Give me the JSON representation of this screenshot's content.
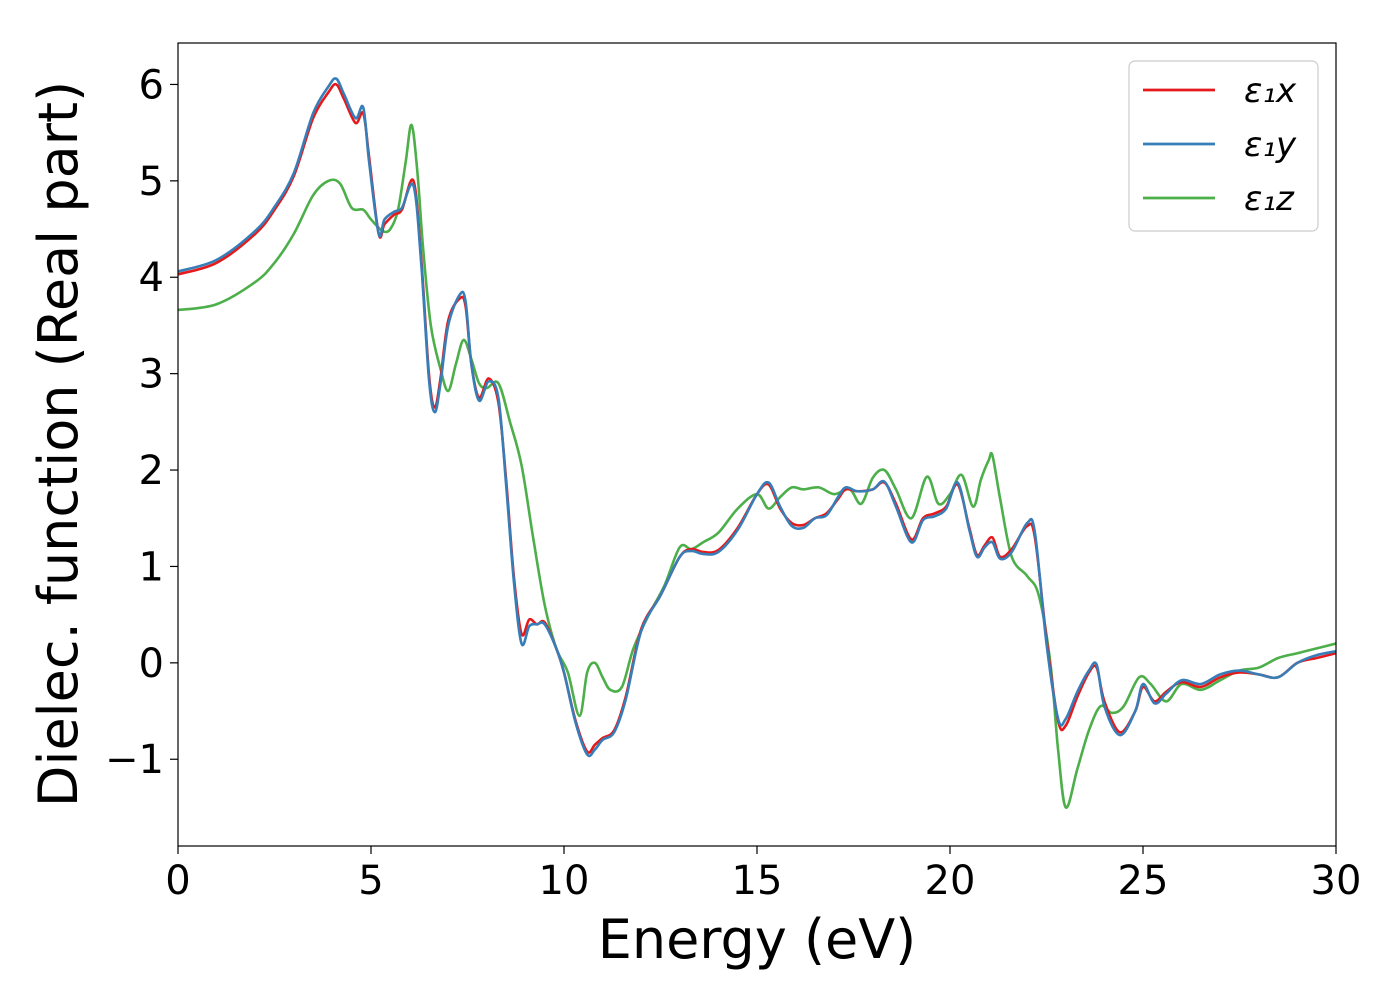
{
  "chart_data": {
    "type": "line",
    "title": "",
    "xlabel": "Energy (eV)",
    "ylabel": "Dielec. function (Real part)",
    "xlim": [
      0,
      30
    ],
    "ylim": [
      -1.9,
      6.43
    ],
    "xticks": [
      0,
      5,
      10,
      15,
      20,
      25,
      30
    ],
    "xtick_labels": [
      "0",
      "5",
      "10",
      "15",
      "20",
      "25",
      "30"
    ],
    "yticks": [
      -1,
      0,
      1,
      2,
      3,
      4,
      5,
      6
    ],
    "ytick_labels": [
      "−1",
      "0",
      "1",
      "2",
      "3",
      "4",
      "5",
      "6"
    ],
    "grid": false,
    "legend_position": "top-right",
    "series": [
      {
        "name": "ε₁x",
        "color": "#e41a1c",
        "x": [
          0,
          1,
          2,
          2.5,
          3,
          3.5,
          3.9,
          4.1,
          4.3,
          4.6,
          4.8,
          4.95,
          5.2,
          5.35,
          5.6,
          5.8,
          6.1,
          6.3,
          6.5,
          6.65,
          6.8,
          7.0,
          7.3,
          7.45,
          7.6,
          7.8,
          8.05,
          8.3,
          8.5,
          8.7,
          8.9,
          9.1,
          9.3,
          9.5,
          9.8,
          10.0,
          10.3,
          10.6,
          10.8,
          11.0,
          11.3,
          11.6,
          12.0,
          12.5,
          13.0,
          13.3,
          13.6,
          14.0,
          14.5,
          15.0,
          15.3,
          15.6,
          15.9,
          16.2,
          16.5,
          16.8,
          17.1,
          17.3,
          17.6,
          18.0,
          18.3,
          18.6,
          19.0,
          19.3,
          19.6,
          19.9,
          20.2,
          20.5,
          20.7,
          20.9,
          21.1,
          21.3,
          21.6,
          22.0,
          22.2,
          22.5,
          22.8,
          23.0,
          23.3,
          23.6,
          23.8,
          24.0,
          24.4,
          24.8,
          25.0,
          25.3,
          25.6,
          26.0,
          26.5,
          27.0,
          27.5,
          28.0,
          28.5,
          29.0,
          29.5,
          30.0
        ],
        "y": [
          4.03,
          4.15,
          4.45,
          4.7,
          5.05,
          5.65,
          5.92,
          6.0,
          5.85,
          5.6,
          5.7,
          5.25,
          4.45,
          4.55,
          4.65,
          4.7,
          5.0,
          4.2,
          3.0,
          2.65,
          2.95,
          3.55,
          3.78,
          3.7,
          3.1,
          2.75,
          2.95,
          2.7,
          1.9,
          0.9,
          0.3,
          0.45,
          0.4,
          0.42,
          0.15,
          -0.1,
          -0.6,
          -0.92,
          -0.85,
          -0.78,
          -0.7,
          -0.35,
          0.35,
          0.7,
          1.1,
          1.18,
          1.15,
          1.17,
          1.4,
          1.75,
          1.85,
          1.6,
          1.45,
          1.43,
          1.5,
          1.55,
          1.7,
          1.8,
          1.78,
          1.8,
          1.87,
          1.65,
          1.28,
          1.5,
          1.55,
          1.62,
          1.85,
          1.4,
          1.12,
          1.22,
          1.3,
          1.1,
          1.18,
          1.42,
          1.3,
          0.25,
          -0.6,
          -0.65,
          -0.35,
          -0.1,
          -0.05,
          -0.4,
          -0.72,
          -0.5,
          -0.25,
          -0.4,
          -0.3,
          -0.2,
          -0.25,
          -0.15,
          -0.1,
          -0.12,
          -0.15,
          0.0,
          0.05,
          0.1
        ]
      },
      {
        "name": "ε₁y",
        "color": "#377eb8",
        "x": [
          0,
          1,
          2,
          2.5,
          3,
          3.5,
          3.9,
          4.1,
          4.3,
          4.6,
          4.8,
          4.95,
          5.2,
          5.35,
          5.6,
          5.8,
          6.1,
          6.3,
          6.5,
          6.65,
          6.8,
          7.0,
          7.3,
          7.45,
          7.6,
          7.8,
          8.05,
          8.3,
          8.5,
          8.7,
          8.9,
          9.1,
          9.3,
          9.5,
          9.8,
          10.0,
          10.3,
          10.6,
          10.8,
          11.0,
          11.3,
          11.6,
          12.0,
          12.5,
          13.0,
          13.3,
          13.6,
          14.0,
          14.5,
          15.0,
          15.3,
          15.6,
          15.9,
          16.2,
          16.5,
          16.8,
          17.1,
          17.3,
          17.6,
          18.0,
          18.3,
          18.6,
          19.0,
          19.3,
          19.6,
          19.9,
          20.2,
          20.5,
          20.7,
          20.9,
          21.1,
          21.3,
          21.6,
          22.0,
          22.2,
          22.5,
          22.8,
          23.0,
          23.3,
          23.6,
          23.8,
          24.0,
          24.4,
          24.8,
          25.0,
          25.3,
          25.6,
          26.0,
          26.5,
          27.0,
          27.5,
          28.0,
          28.5,
          29.0,
          29.5,
          30.0
        ],
        "y": [
          4.06,
          4.18,
          4.48,
          4.73,
          5.08,
          5.7,
          5.98,
          6.06,
          5.9,
          5.65,
          5.76,
          5.2,
          4.45,
          4.6,
          4.68,
          4.72,
          4.95,
          4.15,
          2.95,
          2.6,
          2.9,
          3.5,
          3.82,
          3.75,
          3.1,
          2.72,
          2.92,
          2.75,
          1.85,
          0.85,
          0.2,
          0.38,
          0.4,
          0.4,
          0.15,
          -0.1,
          -0.62,
          -0.95,
          -0.9,
          -0.8,
          -0.72,
          -0.38,
          0.33,
          0.7,
          1.1,
          1.16,
          1.13,
          1.15,
          1.38,
          1.75,
          1.87,
          1.62,
          1.42,
          1.4,
          1.5,
          1.53,
          1.72,
          1.82,
          1.78,
          1.8,
          1.88,
          1.62,
          1.25,
          1.48,
          1.52,
          1.6,
          1.87,
          1.38,
          1.1,
          1.2,
          1.25,
          1.08,
          1.15,
          1.45,
          1.35,
          0.2,
          -0.58,
          -0.58,
          -0.3,
          -0.08,
          -0.02,
          -0.45,
          -0.75,
          -0.5,
          -0.22,
          -0.42,
          -0.32,
          -0.18,
          -0.22,
          -0.12,
          -0.08,
          -0.12,
          -0.15,
          0.0,
          0.08,
          0.12
        ]
      },
      {
        "name": "ε₁z",
        "color": "#4daf4a",
        "x": [
          0,
          1,
          2,
          2.5,
          3,
          3.5,
          3.9,
          4.2,
          4.5,
          4.8,
          5.0,
          5.3,
          5.5,
          5.7,
          5.9,
          6.05,
          6.2,
          6.35,
          6.55,
          6.8,
          7.0,
          7.2,
          7.4,
          7.6,
          7.8,
          8.0,
          8.3,
          8.6,
          8.9,
          9.2,
          9.5,
          9.8,
          10.1,
          10.4,
          10.6,
          10.8,
          11.0,
          11.2,
          11.5,
          11.8,
          12.2,
          12.6,
          13.0,
          13.3,
          13.6,
          14.0,
          14.5,
          15.0,
          15.3,
          15.6,
          15.9,
          16.2,
          16.6,
          17.0,
          17.4,
          17.7,
          18.0,
          18.3,
          18.6,
          19.0,
          19.4,
          19.7,
          20.0,
          20.3,
          20.6,
          20.8,
          21.0,
          21.1,
          21.3,
          21.6,
          22.0,
          22.3,
          22.6,
          22.8,
          23.0,
          23.3,
          23.6,
          23.9,
          24.2,
          24.5,
          24.9,
          25.2,
          25.6,
          26.0,
          26.5,
          27.0,
          27.5,
          28.0,
          28.5,
          29.0,
          29.5,
          30.0
        ],
        "y": [
          3.66,
          3.72,
          3.95,
          4.15,
          4.45,
          4.85,
          5.0,
          4.97,
          4.72,
          4.7,
          4.6,
          4.48,
          4.5,
          4.7,
          5.2,
          5.58,
          5.1,
          4.3,
          3.5,
          3.05,
          2.82,
          3.1,
          3.35,
          3.15,
          2.9,
          2.85,
          2.9,
          2.5,
          2.05,
          1.3,
          0.6,
          0.15,
          -0.1,
          -0.55,
          -0.1,
          0.0,
          -0.15,
          -0.28,
          -0.25,
          0.15,
          0.5,
          0.8,
          1.2,
          1.18,
          1.25,
          1.35,
          1.6,
          1.75,
          1.6,
          1.72,
          1.82,
          1.8,
          1.82,
          1.75,
          1.8,
          1.65,
          1.92,
          2.0,
          1.8,
          1.5,
          1.93,
          1.65,
          1.75,
          1.95,
          1.62,
          1.9,
          2.1,
          2.15,
          1.7,
          1.1,
          0.9,
          0.7,
          0.0,
          -0.9,
          -1.5,
          -1.1,
          -0.7,
          -0.45,
          -0.52,
          -0.45,
          -0.15,
          -0.22,
          -0.4,
          -0.22,
          -0.28,
          -0.18,
          -0.08,
          -0.05,
          0.05,
          0.1,
          0.15,
          0.2
        ]
      }
    ]
  }
}
